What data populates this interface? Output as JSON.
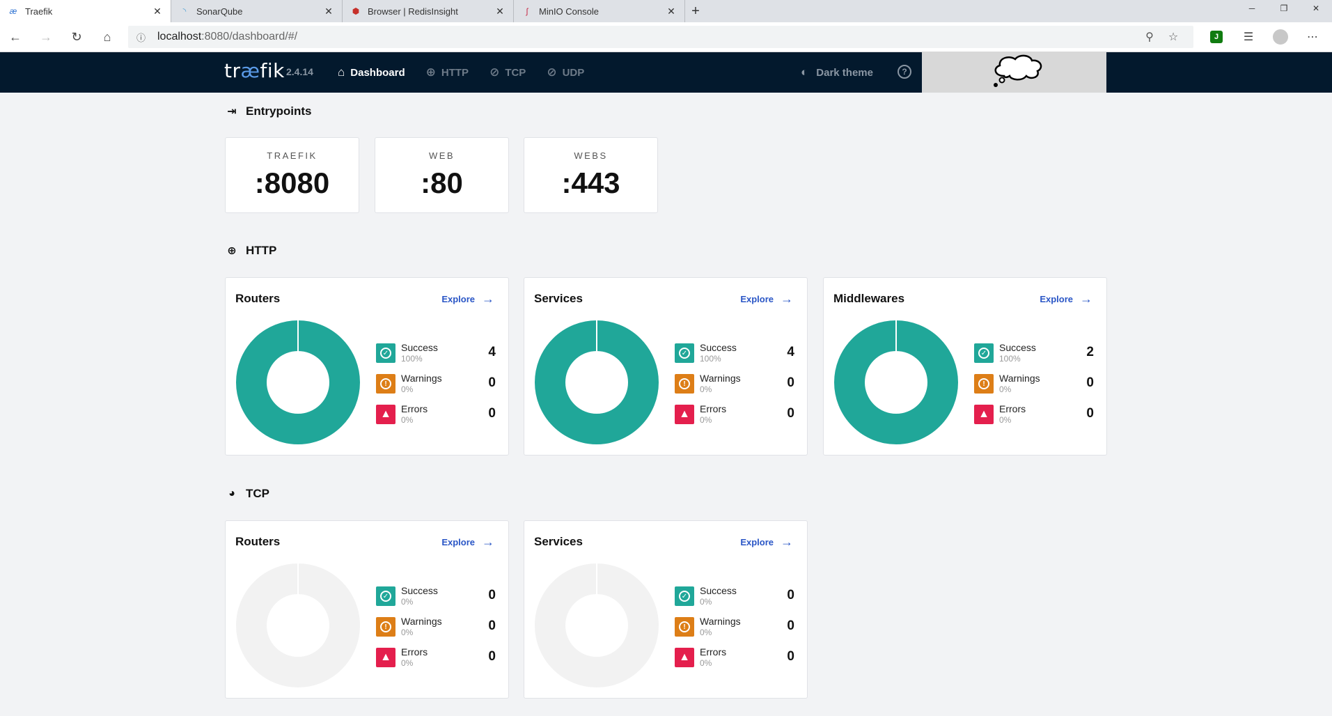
{
  "browser": {
    "tabs": [
      {
        "title": "Traefik",
        "icon": "traefik-icon",
        "active": true
      },
      {
        "title": "SonarQube",
        "icon": "sonarqube-icon",
        "active": false
      },
      {
        "title": "Browser | RedisInsight",
        "icon": "redis-icon",
        "active": false
      },
      {
        "title": "MinIO Console",
        "icon": "minio-icon",
        "active": false
      }
    ],
    "url_host": "localhost",
    "url_path": ":8080/dashboard/#/"
  },
  "header": {
    "brand_left": "tr",
    "brand_ae": "æ",
    "brand_right": "fik",
    "version": "2.4.14",
    "nav": {
      "dashboard": "Dashboard",
      "http": "HTTP",
      "tcp": "TCP",
      "udp": "UDP"
    },
    "dark_theme": "Dark theme"
  },
  "entrypoints": {
    "title": "Entrypoints",
    "items": [
      {
        "name": "TRAEFIK",
        "address": ":8080"
      },
      {
        "name": "WEB",
        "address": ":80"
      },
      {
        "name": "WEBS",
        "address": ":443"
      }
    ]
  },
  "http": {
    "title": "HTTP",
    "cards": [
      {
        "title": "Routers",
        "explore": "Explore",
        "success": 4,
        "success_pct": "100%",
        "warnings": 0,
        "warnings_pct": "0%",
        "errors": 0,
        "errors_pct": "0%"
      },
      {
        "title": "Services",
        "explore": "Explore",
        "success": 4,
        "success_pct": "100%",
        "warnings": 0,
        "warnings_pct": "0%",
        "errors": 0,
        "errors_pct": "0%"
      },
      {
        "title": "Middlewares",
        "explore": "Explore",
        "success": 2,
        "success_pct": "100%",
        "warnings": 0,
        "warnings_pct": "0%",
        "errors": 0,
        "errors_pct": "0%"
      }
    ]
  },
  "tcp": {
    "title": "TCP",
    "cards": [
      {
        "title": "Routers",
        "explore": "Explore",
        "success": 0,
        "success_pct": "0%",
        "warnings": 0,
        "warnings_pct": "0%",
        "errors": 0,
        "errors_pct": "0%"
      },
      {
        "title": "Services",
        "explore": "Explore",
        "success": 0,
        "success_pct": "0%",
        "warnings": 0,
        "warnings_pct": "0%",
        "errors": 0,
        "errors_pct": "0%"
      }
    ]
  },
  "labels": {
    "success": "Success",
    "warnings": "Warnings",
    "errors": "Errors"
  },
  "colors": {
    "success": "#20a799",
    "warning": "#dd7e17",
    "error": "#e41f4d",
    "empty": "#f2f2f2",
    "nav_bg": "#03192d"
  }
}
